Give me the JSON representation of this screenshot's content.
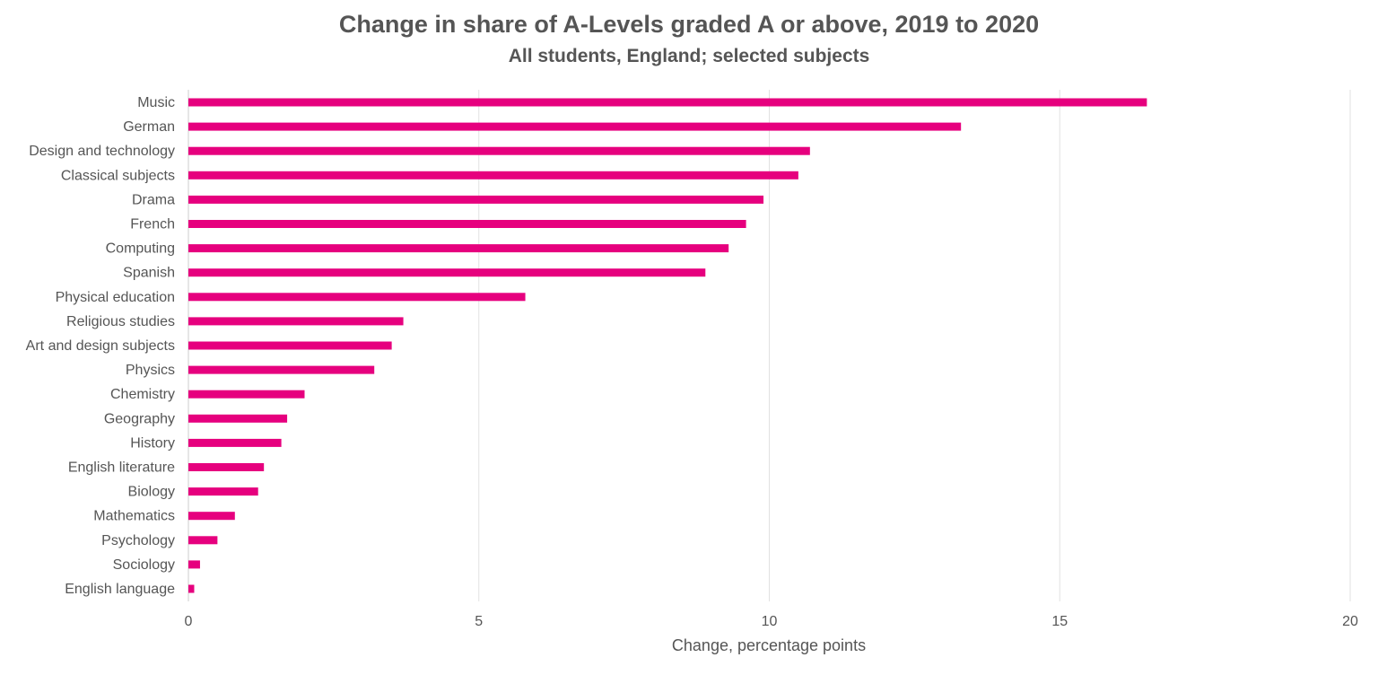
{
  "chart_data": {
    "type": "bar",
    "orientation": "horizontal",
    "title": "Change in share of A-Levels graded A or above, 2019 to 2020",
    "subtitle": "All students, England; selected subjects",
    "xlabel": "Change, percentage points",
    "ylabel": "",
    "xlim": [
      0,
      20
    ],
    "xticks": [
      0,
      5,
      10,
      15,
      20
    ],
    "grid": "vertical",
    "legend": "none",
    "bar_color": "#E6007E",
    "categories": [
      "Music",
      "German",
      "Design and technology",
      "Classical subjects",
      "Drama",
      "French",
      "Computing",
      "Spanish",
      "Physical education",
      "Religious studies",
      "Art and design subjects",
      "Physics",
      "Chemistry",
      "Geography",
      "History",
      "English literature",
      "Biology",
      "Mathematics",
      "Psychology",
      "Sociology",
      "English language"
    ],
    "values": [
      16.5,
      13.3,
      10.7,
      10.5,
      9.9,
      9.6,
      9.3,
      8.9,
      5.8,
      3.7,
      3.5,
      3.2,
      2.0,
      1.7,
      1.6,
      1.3,
      1.2,
      0.8,
      0.5,
      0.2,
      0.1
    ]
  }
}
